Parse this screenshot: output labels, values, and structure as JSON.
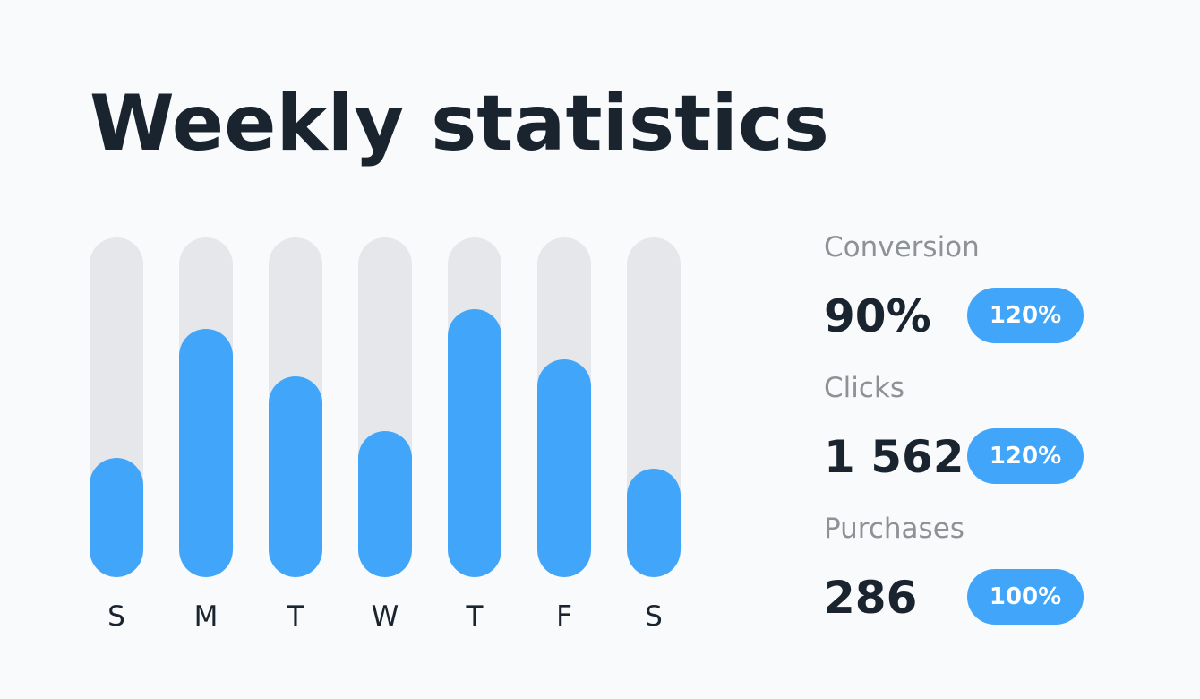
{
  "title": "Weekly statistics",
  "colors": {
    "accent": "#41a6fa",
    "track": "#e6e7ea",
    "text": "#1a242f",
    "muted": "#8e9196",
    "background": "#f9fafc"
  },
  "chart_data": {
    "type": "bar",
    "categories": [
      "S",
      "M",
      "T",
      "W",
      "T",
      "F",
      "S"
    ],
    "values": [
      35,
      73,
      59,
      43,
      79,
      64,
      32
    ],
    "ylim": [
      0,
      100
    ],
    "grid": false
  },
  "stats": [
    {
      "label": "Conversion",
      "value": "90%",
      "badge": "120%"
    },
    {
      "label": "Clicks",
      "value": "1 562",
      "badge": "120%"
    },
    {
      "label": "Purchases",
      "value": "286",
      "badge": "100%"
    }
  ]
}
